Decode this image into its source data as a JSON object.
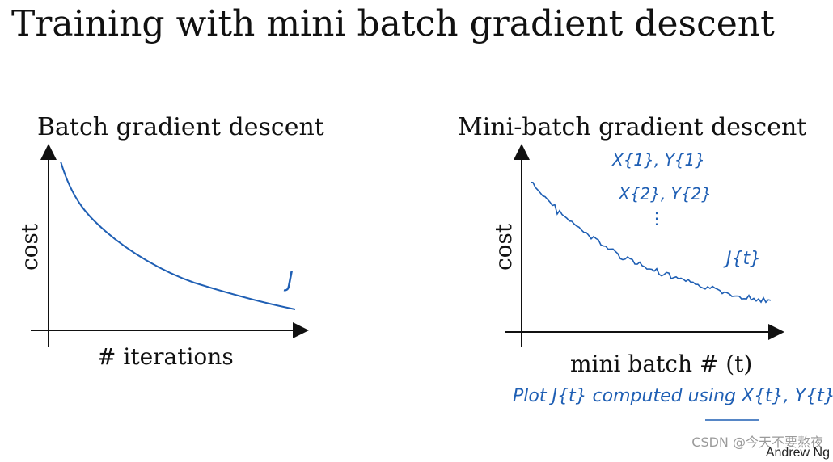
{
  "slide": {
    "title": "Training with mini batch gradient descent"
  },
  "left_chart": {
    "title": "Batch gradient descent",
    "ylabel": "cost",
    "xlabel": "# iterations",
    "curve_label": "J"
  },
  "right_chart": {
    "title": "Mini-batch gradient descent",
    "ylabel": "cost",
    "xlabel": "mini batch # (t)",
    "curve_label": "J{t}",
    "notes": [
      "X{1}, Y{1}",
      "X{2}, Y{2}",
      "⋮"
    ],
    "plot_note": "Plot J{t} computed using X{t}, Y{t}"
  },
  "footer": {
    "watermark": "CSDN @今天不要熬夜",
    "credit": "Andrew Ng"
  },
  "colors": {
    "ink": "#1f5fb4",
    "axis": "#111111"
  }
}
